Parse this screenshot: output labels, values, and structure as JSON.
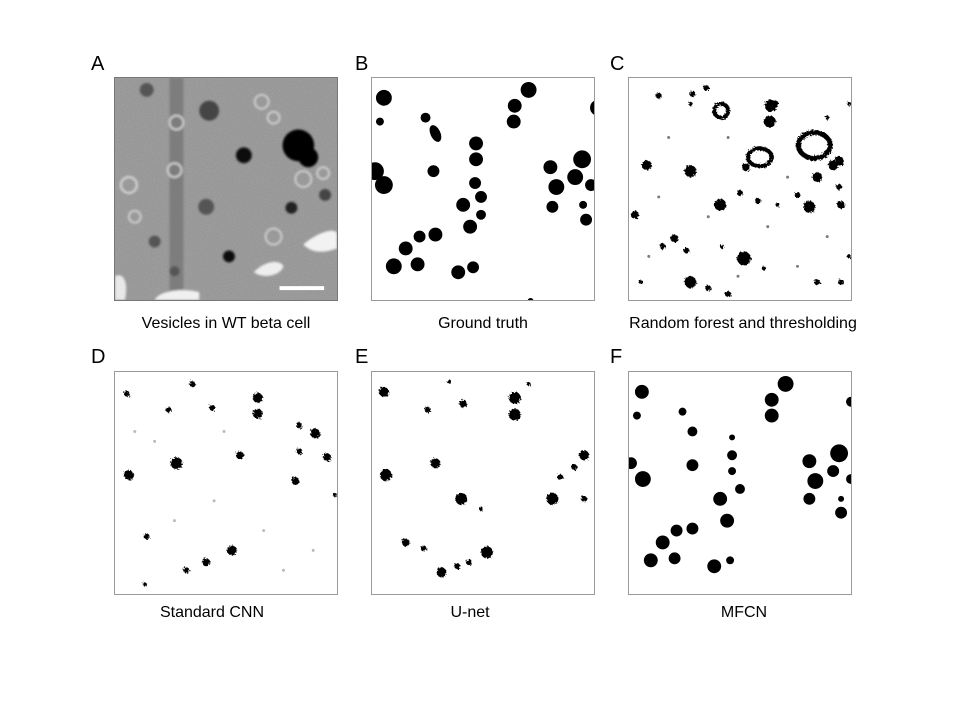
{
  "figure": {
    "panels": [
      {
        "letter": "A",
        "caption": "Vesicles in WT beta cell"
      },
      {
        "letter": "B",
        "caption": "Ground truth"
      },
      {
        "letter": "C",
        "caption": "Random forest and thresholding"
      },
      {
        "letter": "D",
        "caption": "Standard CNN"
      },
      {
        "letter": "E",
        "caption": "U-net"
      },
      {
        "letter": "F",
        "caption": "MFCN"
      }
    ]
  }
}
